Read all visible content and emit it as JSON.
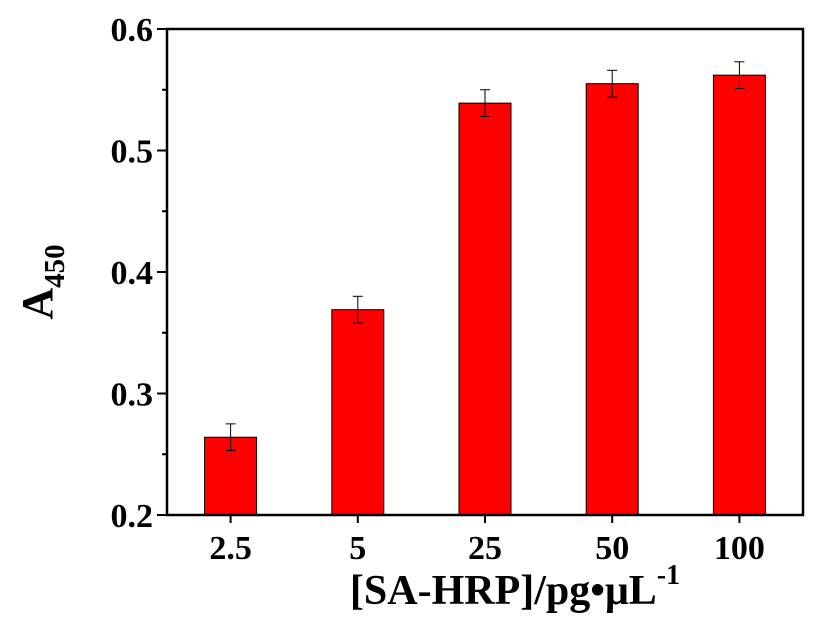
{
  "chart_data": {
    "type": "bar",
    "categories": [
      "2.5",
      "5",
      "25",
      "50",
      "100"
    ],
    "values": [
      0.264,
      0.369,
      0.539,
      0.555,
      0.562
    ],
    "errors": [
      0.011,
      0.011,
      0.011,
      0.011,
      0.011
    ],
    "ylim": [
      0.2,
      0.6
    ],
    "yticks": [
      "0.2",
      "0.3",
      "0.4",
      "0.5",
      "0.6"
    ],
    "ylabel": {
      "main": "A",
      "sub": "450"
    },
    "xlabel": {
      "main": "[SA-HRP]/pg•μL",
      "sup": "-1"
    },
    "bar_color": "#ff0000",
    "grid": false,
    "legend": "none"
  }
}
